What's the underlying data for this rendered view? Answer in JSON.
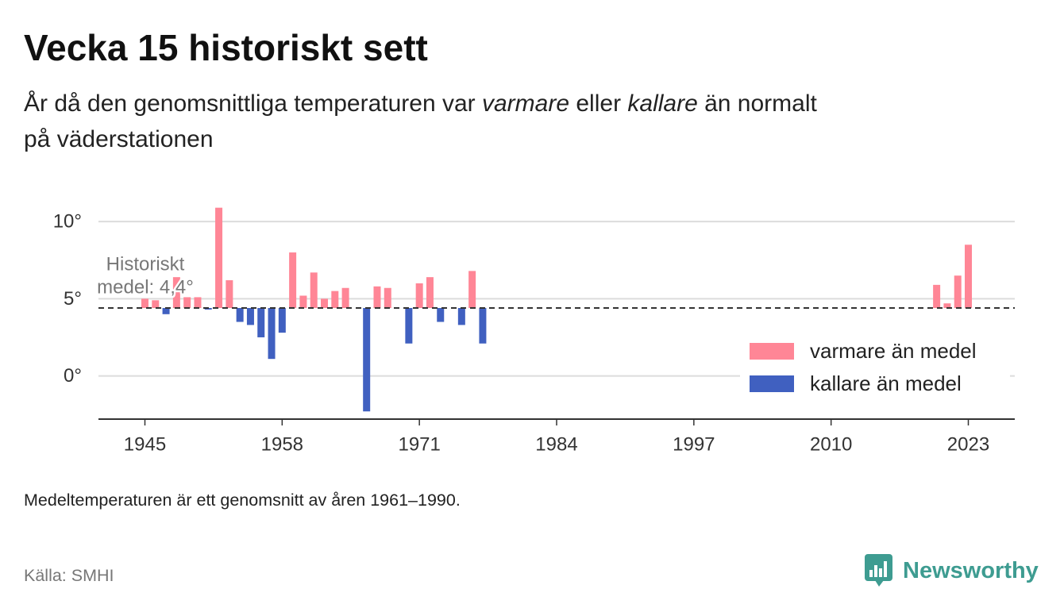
{
  "chart_data": {
    "type": "bar",
    "title": "Vecka 15 historiskt sett",
    "subtitle": {
      "text_1": "År då den genomsnittliga temperaturen var ",
      "italic_1": "varmare",
      "text_2": " eller ",
      "italic_2": "kallare",
      "text_3": " än normalt",
      "line_2": "på väderstationen"
    },
    "note": "Medeltemperaturen är ett genomsnitt av åren 1961–1990.",
    "baseline": 4.4,
    "baseline_label": [
      "Historiskt",
      "medel: 4,4°"
    ],
    "x": [
      1945,
      1946,
      1947,
      1948,
      1949,
      1950,
      1951,
      1952,
      1953,
      1954,
      1955,
      1956,
      1957,
      1958,
      1959,
      1960,
      1961,
      1962,
      1963,
      1964,
      1966,
      1967,
      1968,
      1970,
      1971,
      1972,
      1973,
      1975,
      1976,
      1977,
      2020,
      2021,
      2022,
      2023
    ],
    "values": [
      5.0,
      4.9,
      4.0,
      6.4,
      5.1,
      5.1,
      4.3,
      10.9,
      6.2,
      3.5,
      3.3,
      2.5,
      1.1,
      2.8,
      8.0,
      5.2,
      6.7,
      5.0,
      5.5,
      5.7,
      -2.3,
      5.8,
      5.7,
      2.1,
      6.0,
      6.4,
      3.5,
      3.3,
      6.8,
      2.1,
      5.9,
      4.7,
      6.5,
      8.5
    ],
    "xlim": [
      1940.6,
      2027.4
    ],
    "ylim": [
      -2.8,
      11.5
    ],
    "x_ticks": [
      1945,
      1958,
      1971,
      1984,
      1997,
      2010,
      2023
    ],
    "x_tick_labels": [
      "1945",
      "1958",
      "1971",
      "1984",
      "1997",
      "2010",
      "2023"
    ],
    "y_ticks": [
      0,
      5,
      10
    ],
    "y_tick_labels": [
      "0°",
      "5°",
      "10°"
    ],
    "grid": true,
    "legend": {
      "position": "right",
      "entries": [
        {
          "label": "varmare än medel",
          "color": "#ff8696"
        },
        {
          "label": "kallare än medel",
          "color": "#4060c0"
        }
      ]
    },
    "colors": {
      "above": "#ff8696",
      "below": "#4060c0",
      "baseline": "#333333",
      "grid": "#dcdcdc"
    }
  },
  "footer": {
    "source": "Källa: SMHI",
    "brand": "Newsworthy",
    "brand_color": "#3e9c91",
    "brand_icon": "newsworthy-logo-icon"
  }
}
